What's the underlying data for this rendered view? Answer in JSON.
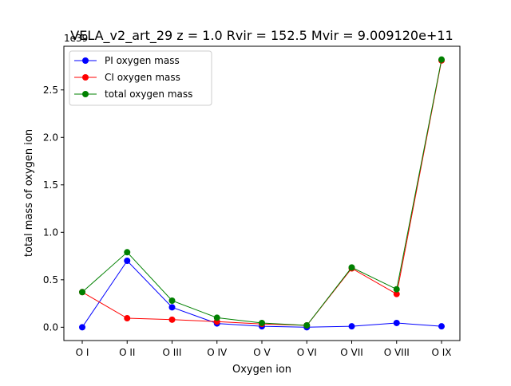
{
  "chart_data": {
    "type": "line",
    "title": "VELA_v2_art_29 z = 1.0 Rvir = 152.5 Mvir = 9.009120e+11",
    "xlabel": "Oxygen ion",
    "ylabel": "total mass of oxygen ion",
    "y_offset_label": "1e39",
    "categories": [
      "O I",
      "O II",
      "O III",
      "O IV",
      "O V",
      "O VI",
      "O VII",
      "O VIII",
      "O IX"
    ],
    "ylim": [
      -0.14,
      2.96
    ],
    "yticks": [
      0.0,
      0.5,
      1.0,
      1.5,
      2.0,
      2.5
    ],
    "ytick_labels": [
      "0.0",
      "0.5",
      "1.0",
      "1.5",
      "2.0",
      "2.5"
    ],
    "grid": false,
    "legend_position": "upper-left",
    "series": [
      {
        "name": "PI oxygen mass",
        "color": "#0000ff",
        "values": [
          0.0,
          0.7,
          0.21,
          0.04,
          0.01,
          0.0,
          0.01,
          0.045,
          0.01
        ]
      },
      {
        "name": "CI oxygen mass",
        "color": "#ff0000",
        "values": [
          0.37,
          0.095,
          0.08,
          0.06,
          0.035,
          0.02,
          0.62,
          0.35,
          2.81
        ]
      },
      {
        "name": "total oxygen mass",
        "color": "#008000",
        "values": [
          0.37,
          0.79,
          0.28,
          0.1,
          0.045,
          0.02,
          0.63,
          0.4,
          2.82
        ]
      }
    ]
  }
}
